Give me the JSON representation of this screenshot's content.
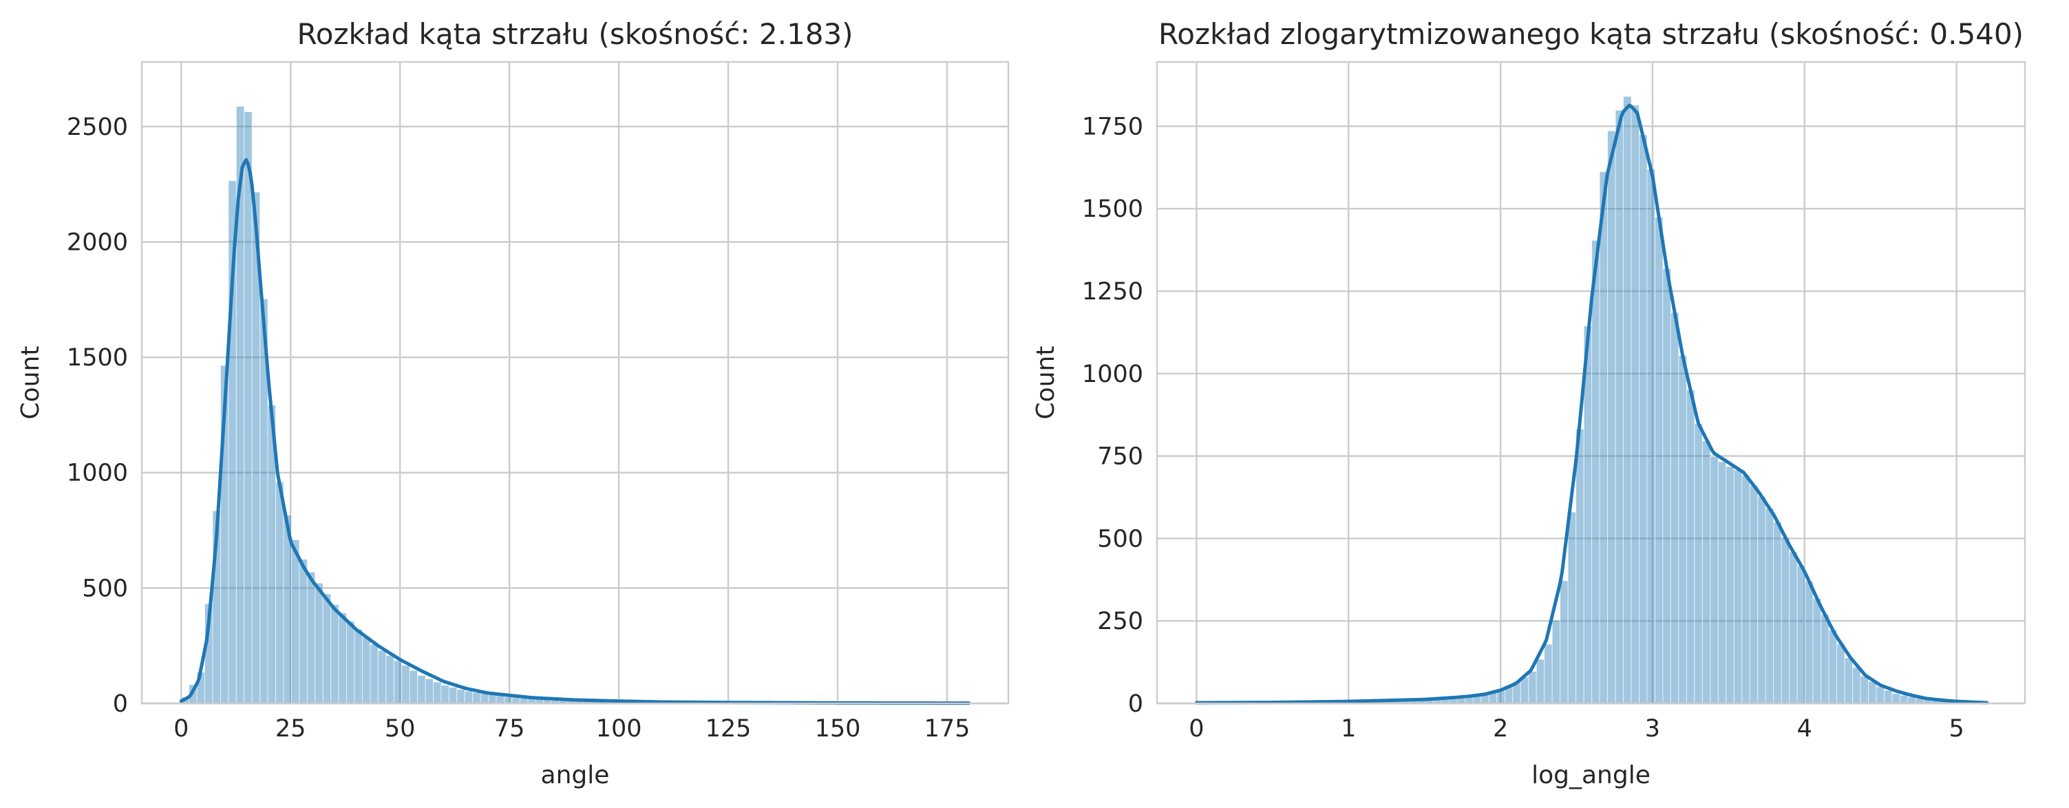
{
  "chart_data": [
    {
      "type": "bar",
      "title": "Rozkład kąta strzału (skośność: 2.183)",
      "xlabel": "angle",
      "ylabel": "Count",
      "xlim": [
        -9,
        189
      ],
      "ylim": [
        0,
        2780
      ],
      "xticks": [
        0,
        25,
        50,
        75,
        100,
        125,
        150,
        175
      ],
      "yticks": [
        0,
        500,
        1000,
        1500,
        2000,
        2500
      ],
      "grid": true,
      "bin_width": 1.8,
      "histogram": {
        "x": [
          0,
          5,
          8,
          10,
          12,
          14,
          15,
          16,
          18,
          20,
          22,
          25,
          28,
          30,
          35,
          40,
          45,
          50,
          55,
          60,
          65,
          70,
          75,
          80,
          90,
          100,
          110,
          125,
          150,
          180
        ],
        "counts": [
          0,
          150,
          800,
          1500,
          2400,
          2650,
          2600,
          2480,
          2000,
          1450,
          1000,
          760,
          620,
          560,
          430,
          330,
          240,
          180,
          120,
          80,
          55,
          40,
          28,
          20,
          12,
          8,
          5,
          3,
          2,
          1
        ]
      },
      "kde": {
        "x": [
          0,
          2,
          4,
          6,
          8,
          10,
          12,
          13,
          14,
          15,
          16,
          17,
          18,
          20,
          22,
          25,
          28,
          30,
          35,
          40,
          45,
          50,
          55,
          60,
          65,
          70,
          75,
          80,
          90,
          100,
          110,
          125,
          150,
          180
        ],
        "y": [
          10,
          30,
          100,
          290,
          700,
          1300,
          1930,
          2180,
          2330,
          2360,
          2280,
          2090,
          1850,
          1390,
          1000,
          700,
          590,
          530,
          410,
          320,
          250,
          190,
          140,
          95,
          65,
          45,
          35,
          25,
          15,
          10,
          6,
          4,
          2,
          1
        ]
      }
    },
    {
      "type": "bar",
      "title": "Rozkład zlogarytmizowanego kąta strzału (skośność: 0.540)",
      "xlabel": "log_angle",
      "ylabel": "Count",
      "xlim": [
        -0.26,
        5.45
      ],
      "ylim": [
        0,
        1945
      ],
      "xticks": [
        0,
        1,
        2,
        3,
        4,
        5
      ],
      "yticks": [
        0,
        250,
        500,
        750,
        1000,
        1250,
        1500,
        1750
      ],
      "grid": true,
      "bin_width": 0.052,
      "histogram": {
        "x": [
          0,
          1.0,
          1.5,
          1.8,
          2.0,
          2.2,
          2.3,
          2.4,
          2.5,
          2.6,
          2.7,
          2.8,
          2.85,
          2.9,
          3.0,
          3.1,
          3.2,
          3.3,
          3.4,
          3.5,
          3.6,
          3.7,
          3.8,
          3.9,
          4.0,
          4.1,
          4.2,
          4.3,
          4.4,
          4.5,
          4.6,
          4.7,
          4.8,
          5.0,
          5.2
        ],
        "counts": [
          3,
          5,
          10,
          20,
          40,
          90,
          160,
          300,
          700,
          1300,
          1700,
          1820,
          1850,
          1800,
          1600,
          1300,
          1050,
          850,
          750,
          720,
          700,
          640,
          570,
          480,
          400,
          300,
          210,
          130,
          80,
          50,
          30,
          20,
          12,
          5,
          2
        ]
      },
      "kde": {
        "x": [
          0,
          0.5,
          1.0,
          1.5,
          1.7,
          1.8,
          1.9,
          2.0,
          2.1,
          2.2,
          2.3,
          2.4,
          2.5,
          2.6,
          2.7,
          2.8,
          2.85,
          2.9,
          3.0,
          3.1,
          3.2,
          3.3,
          3.4,
          3.5,
          3.6,
          3.7,
          3.8,
          3.9,
          4.0,
          4.1,
          4.2,
          4.3,
          4.4,
          4.5,
          4.6,
          4.7,
          4.8,
          4.9,
          5.0,
          5.1,
          5.2
        ],
        "y": [
          2,
          3,
          6,
          12,
          18,
          22,
          28,
          40,
          60,
          100,
          190,
          380,
          750,
          1230,
          1600,
          1790,
          1815,
          1790,
          1600,
          1300,
          1050,
          850,
          760,
          730,
          700,
          640,
          570,
          480,
          400,
          300,
          210,
          140,
          85,
          55,
          38,
          25,
          15,
          10,
          6,
          4,
          2
        ]
      }
    }
  ]
}
